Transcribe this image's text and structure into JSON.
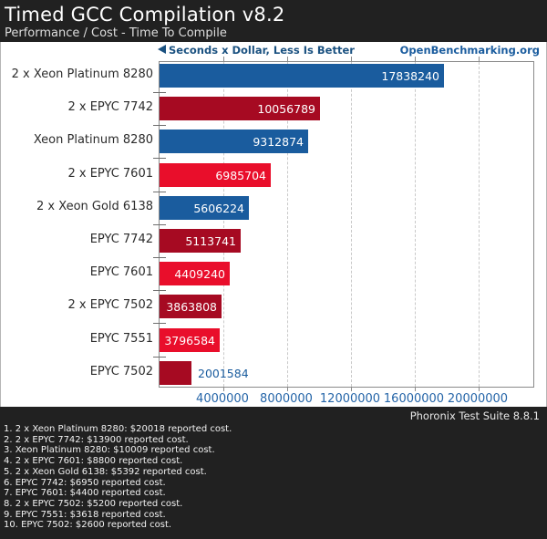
{
  "header": {
    "title": "Timed GCC Compilation v8.2",
    "subtitle": "Performance / Cost - Time To Compile"
  },
  "meta": {
    "hint_label": "Seconds x Dollar, Less Is Better",
    "hint_icon": "left-triangle-icon",
    "site_link": "OpenBenchmarking.org"
  },
  "chart_data": {
    "type": "bar",
    "orientation": "horizontal",
    "title": "Timed GCC Compilation v8.2",
    "subtitle": "Performance / Cost - Time To Compile",
    "unit_label": "Seconds x Dollar, Less Is Better",
    "categories": [
      "2 x Xeon Platinum 8280",
      "2 x EPYC 7742",
      "Xeon Platinum 8280",
      "2 x EPYC 7601",
      "2 x Xeon Gold 6138",
      "EPYC 7742",
      "EPYC 7601",
      "2 x EPYC 7502",
      "EPYC 7551",
      "EPYC 7502"
    ],
    "values": [
      17838240,
      10056789,
      9312874,
      6985704,
      5606224,
      5113741,
      4409240,
      3863808,
      3796584,
      2001584
    ],
    "bar_colors": [
      "#1a5c9e",
      "#a60a22",
      "#1a5c9e",
      "#e90e2b",
      "#1a5c9e",
      "#a60a22",
      "#e90e2b",
      "#a60a22",
      "#e90e2b",
      "#a60a22"
    ],
    "value_label_colors": [
      "#ffffff",
      "#ffffff",
      "#ffffff",
      "#ffffff",
      "#ffffff",
      "#ffffff",
      "#ffffff",
      "#ffffff",
      "#ffffff",
      "#1a5c9e"
    ],
    "value_label_placement": [
      "inside",
      "inside",
      "inside",
      "inside",
      "inside",
      "inside",
      "inside",
      "inside",
      "inside",
      "outside"
    ],
    "xticks": [
      4000000,
      8000000,
      12000000,
      16000000,
      20000000
    ],
    "xtick_labels": [
      "4000000",
      "8000000",
      "12000000",
      "16000000",
      "20000000"
    ],
    "xlim": [
      0,
      23542857
    ],
    "grid": "vertical-dashed",
    "legend": "none"
  },
  "footer": {
    "suite_label": "Phoronix Test Suite 8.8.1",
    "notes": [
      "1. 2 x Xeon Platinum 8280: $20018 reported cost.",
      "2. 2 x EPYC 7742: $13900 reported cost.",
      "3. Xeon Platinum 8280: $10009 reported cost.",
      "4. 2 x EPYC 7601: $8800 reported cost.",
      "5. 2 x Xeon Gold 6138: $5392 reported cost.",
      "6. EPYC 7742: $6950 reported cost.",
      "7. EPYC 7601: $4400 reported cost.",
      "8. 2 x EPYC 7502: $5200 reported cost.",
      "9. EPYC 7551: $3618 reported cost.",
      "10. EPYC 7502: $2600 reported cost."
    ]
  },
  "colors": {
    "header_bg": "#212121",
    "footer_bg": "#212121",
    "blue_bar": "#1a5c9e",
    "dark_red_bar": "#a60a22",
    "bright_red_bar": "#e90e2b",
    "link_blue": "#1a5c9e",
    "axis_gray": "#8a8a8a",
    "grid_gray": "#c9c9c9"
  }
}
